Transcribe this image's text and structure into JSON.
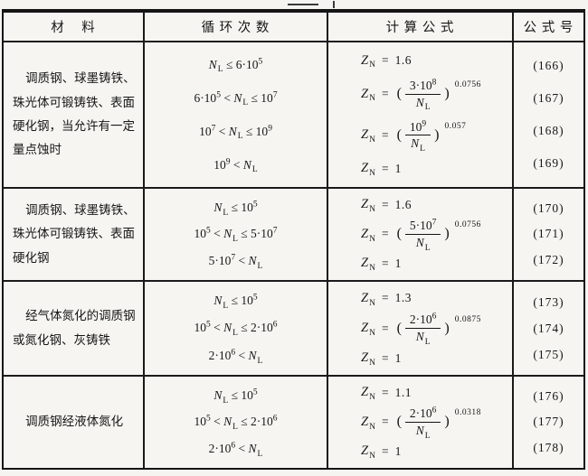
{
  "table": {
    "headers": [
      "材    料",
      "循 环 次 数",
      "计 算 公 式",
      "公 式 号"
    ],
    "rows": [
      {
        "material": [
          "调质钢、球墨铸铁、",
          "珠光体可锻铸铁、表面",
          "硬化钢，当允许有一定",
          "量点蚀时"
        ],
        "cycles": [
          "N_L ≤ 6·10^5",
          "6·10^5 < N_L ≤ 10^7",
          "10^7 < N_L ≤ 10^9",
          "10^9 < N_L"
        ],
        "formulas": [
          {
            "lhs": "Z_N",
            "type": "const",
            "value": "1.6"
          },
          {
            "lhs": "Z_N",
            "type": "pow_frac",
            "num": "3·10^8",
            "den": "N_L",
            "exp": "0.0756"
          },
          {
            "lhs": "Z_N",
            "type": "pow_frac",
            "num": "10^9",
            "den": "N_L",
            "exp": "0.057"
          },
          {
            "lhs": "Z_N",
            "type": "const",
            "value": "1"
          }
        ],
        "numbers": [
          "(166)",
          "(167)",
          "(168)",
          "(169)"
        ]
      },
      {
        "material": [
          "调质钢、球墨铸铁、",
          "珠光体可锻铸铁、表面",
          "硬化钢"
        ],
        "cycles": [
          "N_L ≤ 10^5",
          "10^5 < N_L ≤ 5·10^7",
          "5·10^7 < N_L"
        ],
        "formulas": [
          {
            "lhs": "Z_N",
            "type": "const",
            "value": "1.6"
          },
          {
            "lhs": "Z_N",
            "type": "pow_frac",
            "num": "5·10^7",
            "den": "N_L",
            "exp": "0.0756"
          },
          {
            "lhs": "Z_N",
            "type": "const",
            "value": "1"
          }
        ],
        "numbers": [
          "(170)",
          "(171)",
          "(172)"
        ]
      },
      {
        "material": [
          "经气体氮化的调质钢",
          "或氮化钢、灰铸铁"
        ],
        "cycles": [
          "N_L ≤ 10^5",
          "10^5 < N_L ≤ 2·10^6",
          "2·10^6 < N_L"
        ],
        "formulas": [
          {
            "lhs": "Z_N",
            "type": "const",
            "value": "1.3"
          },
          {
            "lhs": "Z_N",
            "type": "pow_frac",
            "num": "2·10^6",
            "den": "N_L",
            "exp": "0.0875"
          },
          {
            "lhs": "Z_N",
            "type": "const",
            "value": "1"
          }
        ],
        "numbers": [
          "(173)",
          "(174)",
          "(175)"
        ]
      },
      {
        "material": [
          "调质钢经液体氮化"
        ],
        "cycles": [
          "N_L ≤ 10^5",
          "10^5 < N_L ≤ 2·10^6",
          "2·10^6 < N_L"
        ],
        "formulas": [
          {
            "lhs": "Z_N",
            "type": "const",
            "value": "1.1"
          },
          {
            "lhs": "Z_N",
            "type": "pow_frac",
            "num": "2·10^6",
            "den": "N_L",
            "exp": "0.0318"
          },
          {
            "lhs": "Z_N",
            "type": "const",
            "value": "1"
          }
        ],
        "numbers": [
          "(176)",
          "(177)",
          "(178)"
        ]
      }
    ]
  }
}
